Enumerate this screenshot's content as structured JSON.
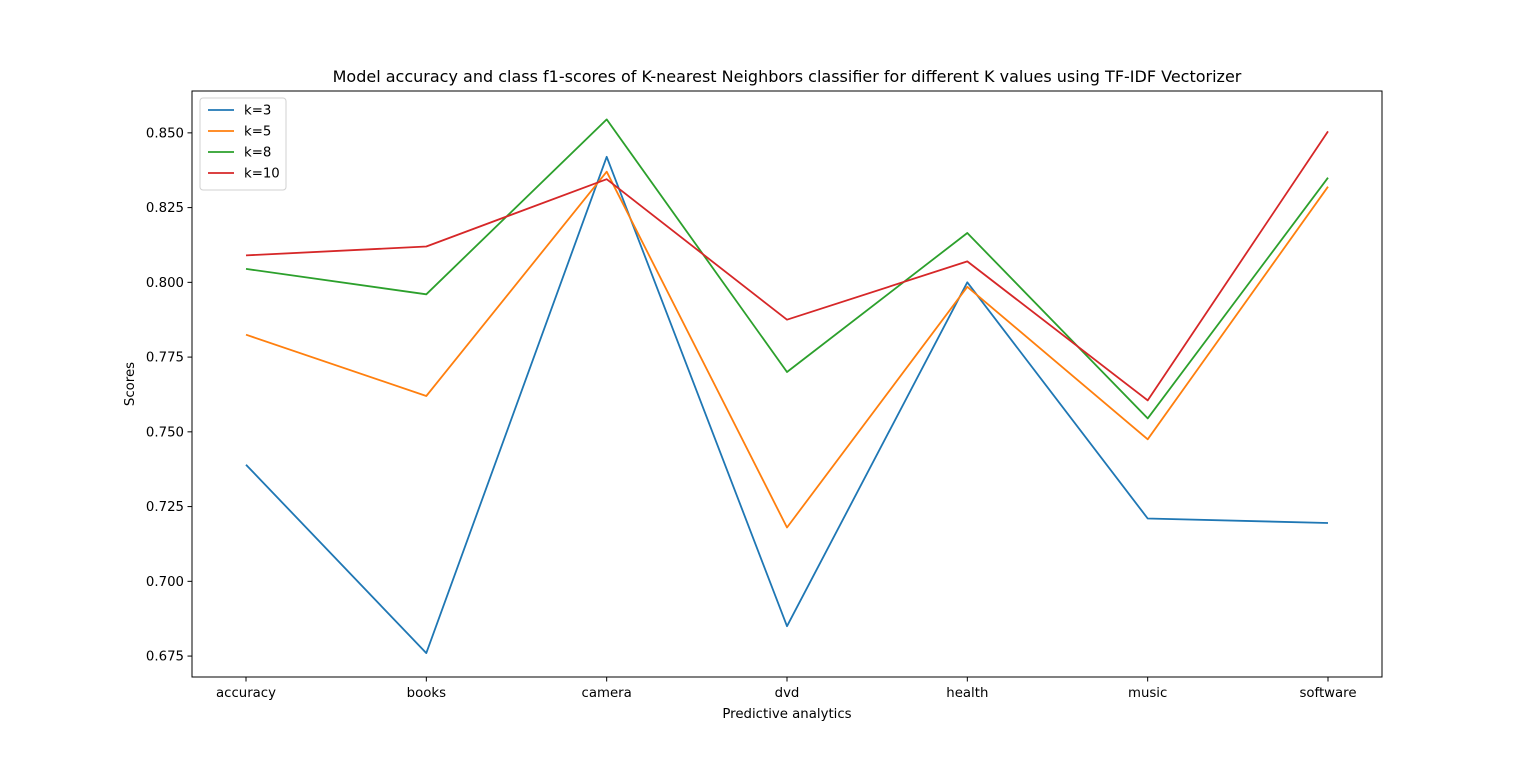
{
  "chart_data": {
    "type": "line",
    "title": "Model accuracy and class f1-scores of K-nearest Neighbors classifier for different K values using TF-IDF Vectorizer",
    "xlabel": "Predictive analytics",
    "ylabel": "Scores",
    "categories": [
      "accuracy",
      "books",
      "camera",
      "dvd",
      "health",
      "music",
      "software"
    ],
    "ylim": [
      0.668,
      0.864
    ],
    "yticks": [
      0.675,
      0.7,
      0.725,
      0.75,
      0.775,
      0.8,
      0.825,
      0.85
    ],
    "ytick_labels": [
      "0.675",
      "0.700",
      "0.725",
      "0.750",
      "0.775",
      "0.800",
      "0.825",
      "0.850"
    ],
    "grid": false,
    "legend_position": "upper-left",
    "series": [
      {
        "name": "k=3",
        "color": "#1f77b4",
        "values": [
          0.739,
          0.676,
          0.842,
          0.685,
          0.8,
          0.721,
          0.7195
        ]
      },
      {
        "name": "k=5",
        "color": "#ff7f0e",
        "values": [
          0.7825,
          0.762,
          0.837,
          0.718,
          0.7985,
          0.7475,
          0.832
        ]
      },
      {
        "name": "k=8",
        "color": "#2ca02c",
        "values": [
          0.8045,
          0.796,
          0.8545,
          0.77,
          0.8165,
          0.7545,
          0.835
        ]
      },
      {
        "name": "k=10",
        "color": "#d62728",
        "values": [
          0.809,
          0.812,
          0.8345,
          0.7875,
          0.807,
          0.7605,
          0.8505
        ]
      }
    ]
  }
}
